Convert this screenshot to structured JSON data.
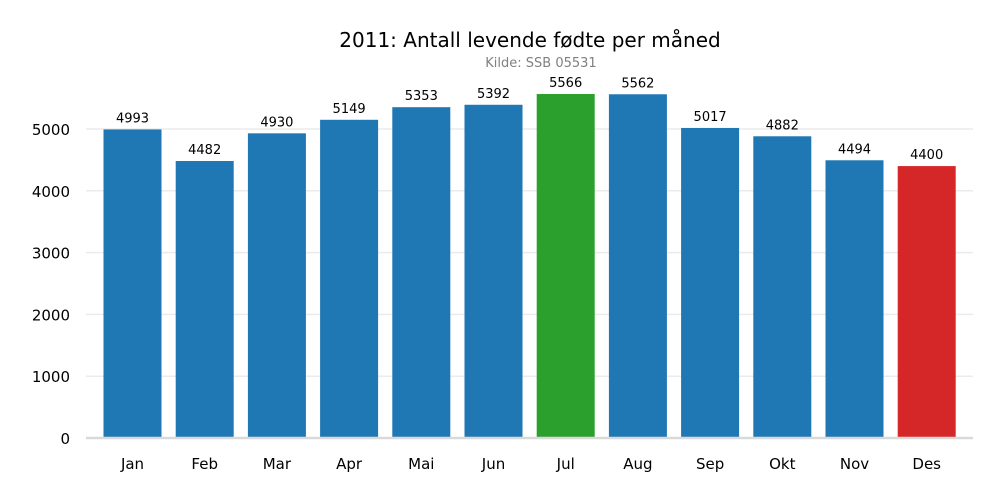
{
  "chart_data": {
    "type": "bar",
    "title": "2011: Antall levende fødte per måned",
    "subtitle": "Kilde: SSB 05531",
    "xlabel": "",
    "ylabel": "",
    "categories": [
      "Jan",
      "Feb",
      "Mar",
      "Apr",
      "Mai",
      "Jun",
      "Jul",
      "Aug",
      "Sep",
      "Okt",
      "Nov",
      "Des"
    ],
    "values": [
      4993,
      4482,
      4930,
      5149,
      5353,
      5392,
      5566,
      5562,
      5017,
      4882,
      4494,
      4400
    ],
    "ylim": [
      0,
      5700
    ],
    "yticks": [
      0,
      1000,
      2000,
      3000,
      4000,
      5000
    ],
    "grid": true,
    "legend": "none",
    "colors": {
      "default": "#1f77b4",
      "max": "#2ca02c",
      "min": "#d62728",
      "grid": "#ebebeb",
      "axis": "#d9d9d9"
    }
  }
}
